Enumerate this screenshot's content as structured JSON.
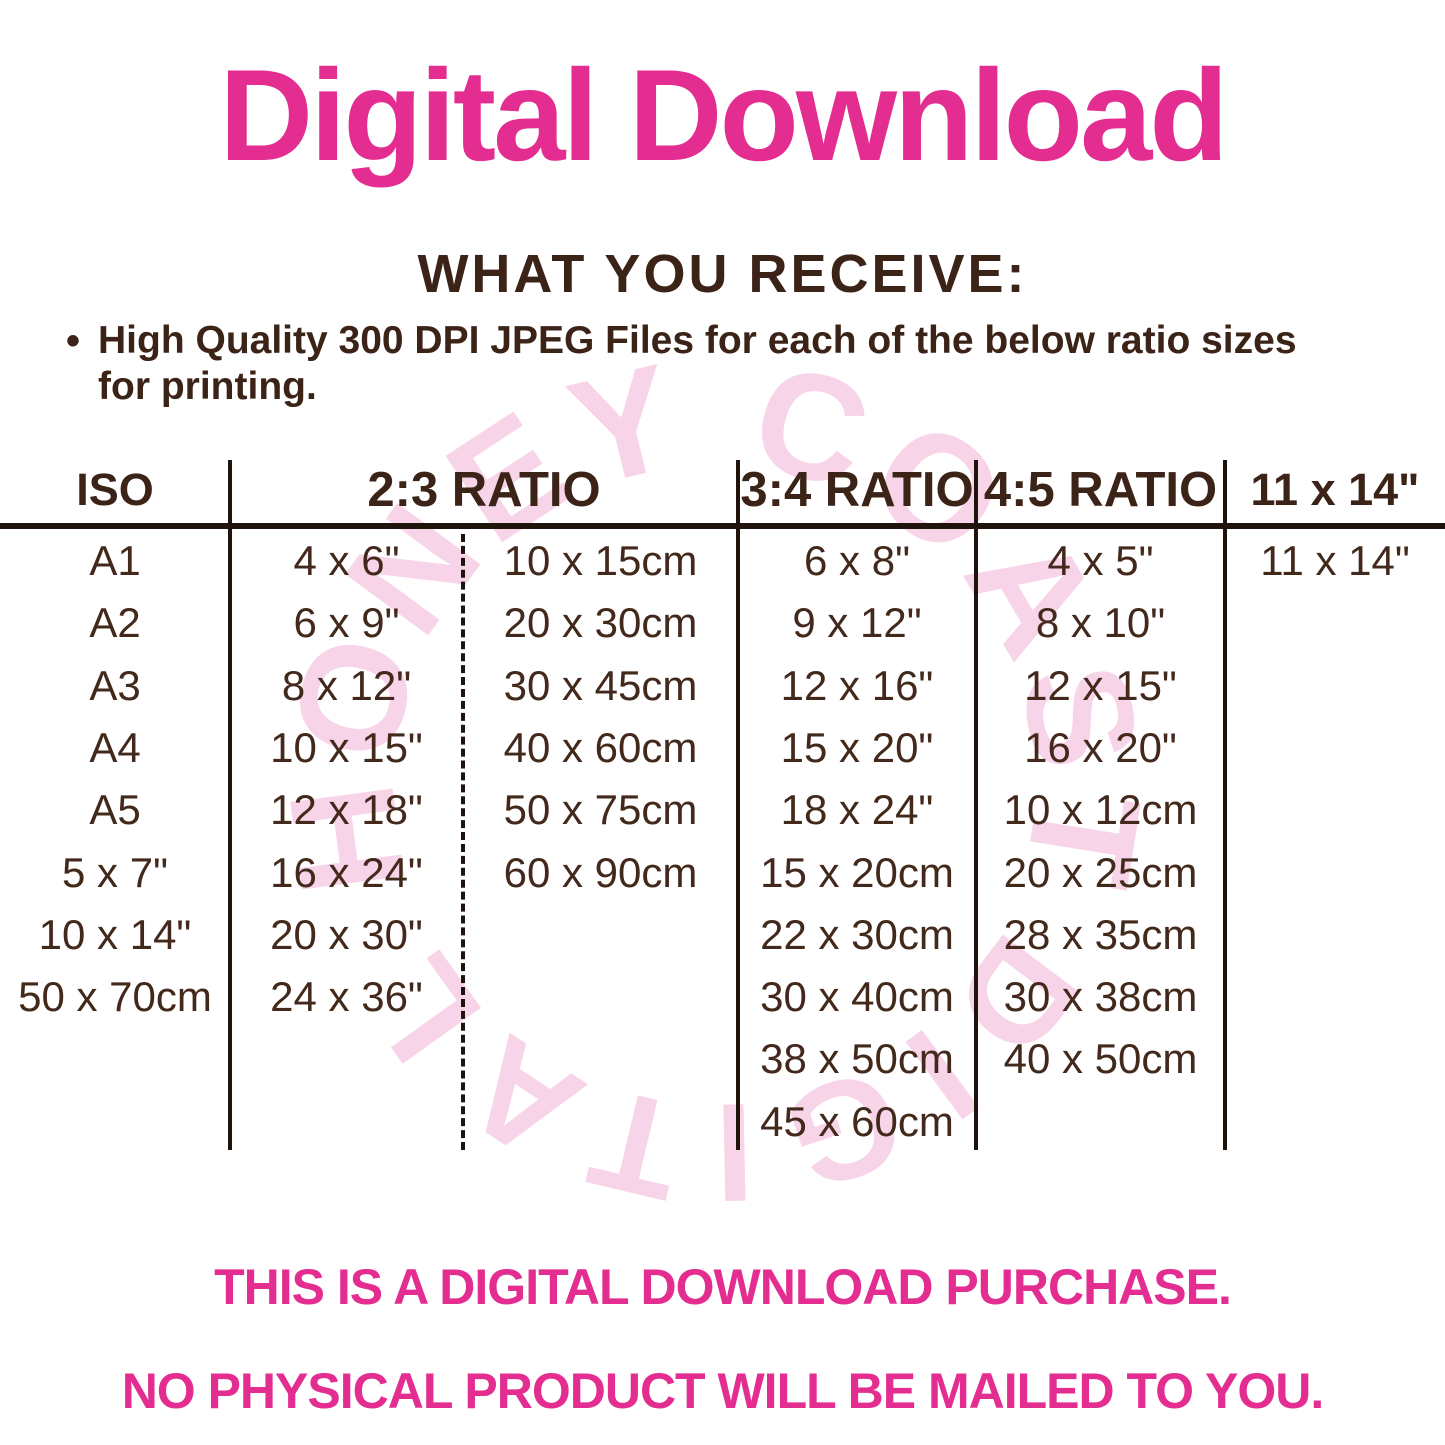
{
  "title": "Digital Download",
  "section": {
    "heading": "WHAT YOU RECEIVE:",
    "bullet_line1": "High Quality 300 DPI JPEG Files for each of the below ratio sizes",
    "bullet_line2": "for printing."
  },
  "watermark": {
    "arc_top": "HONEY COAST",
    "arc_bottom": "DIGITAL"
  },
  "table": {
    "headers": {
      "iso": "ISO",
      "ratio_2_3": "2:3 RATIO",
      "ratio_3_4": "3:4 RATIO",
      "ratio_4_5": "4:5 RATIO",
      "size_11_14": "11 x 14\""
    },
    "columns": [
      {
        "id": "iso",
        "values": [
          "A1",
          "A2",
          "A3",
          "A4",
          "A5",
          "5 x 7\"",
          "10 x 14\"",
          "50 x 70cm",
          "",
          ""
        ]
      },
      {
        "id": "ratio23_in",
        "values": [
          "4 x 6\"",
          "6 x 9\"",
          "8 x 12\"",
          "10 x 15\"",
          "12 x 18\"",
          "16 x 24\"",
          "20 x 30\"",
          "24 x 36\"",
          "",
          ""
        ]
      },
      {
        "id": "ratio23_cm",
        "values": [
          "10 x 15cm",
          "20 x 30cm",
          "30 x 45cm",
          "40 x 60cm",
          "50 x 75cm",
          "60 x 90cm",
          "",
          "",
          "",
          ""
        ]
      },
      {
        "id": "ratio34",
        "values": [
          "6 x 8\"",
          "9 x 12\"",
          "12 x 16\"",
          "15 x 20\"",
          "18 x 24\"",
          "15 x 20cm",
          "22 x 30cm",
          "30 x 40cm",
          "38 x 50cm",
          "45 x 60cm"
        ]
      },
      {
        "id": "ratio45",
        "values": [
          "4 x 5\"",
          "8 x 10\"",
          "12 x 15\"",
          "16 x 20\"",
          "10 x 12cm",
          "20 x 25cm",
          "28 x 35cm",
          "30 x 38cm",
          "40 x 50cm",
          ""
        ]
      },
      {
        "id": "size11x14",
        "values": [
          "11 x 14\"",
          "",
          "",
          "",
          "",
          "",
          "",
          "",
          "",
          ""
        ]
      }
    ]
  },
  "footer": {
    "line1": "THIS IS A DIGITAL DOWNLOAD PURCHASE.",
    "line2": "NO PHYSICAL PRODUCT WILL BE MAILED TO YOU."
  },
  "colors": {
    "pink": "#E32D90",
    "brown_dark": "#3B2317",
    "brown_table": "#43291B",
    "line": "#1F130C",
    "watermark_pink": "#F8D4E9"
  }
}
